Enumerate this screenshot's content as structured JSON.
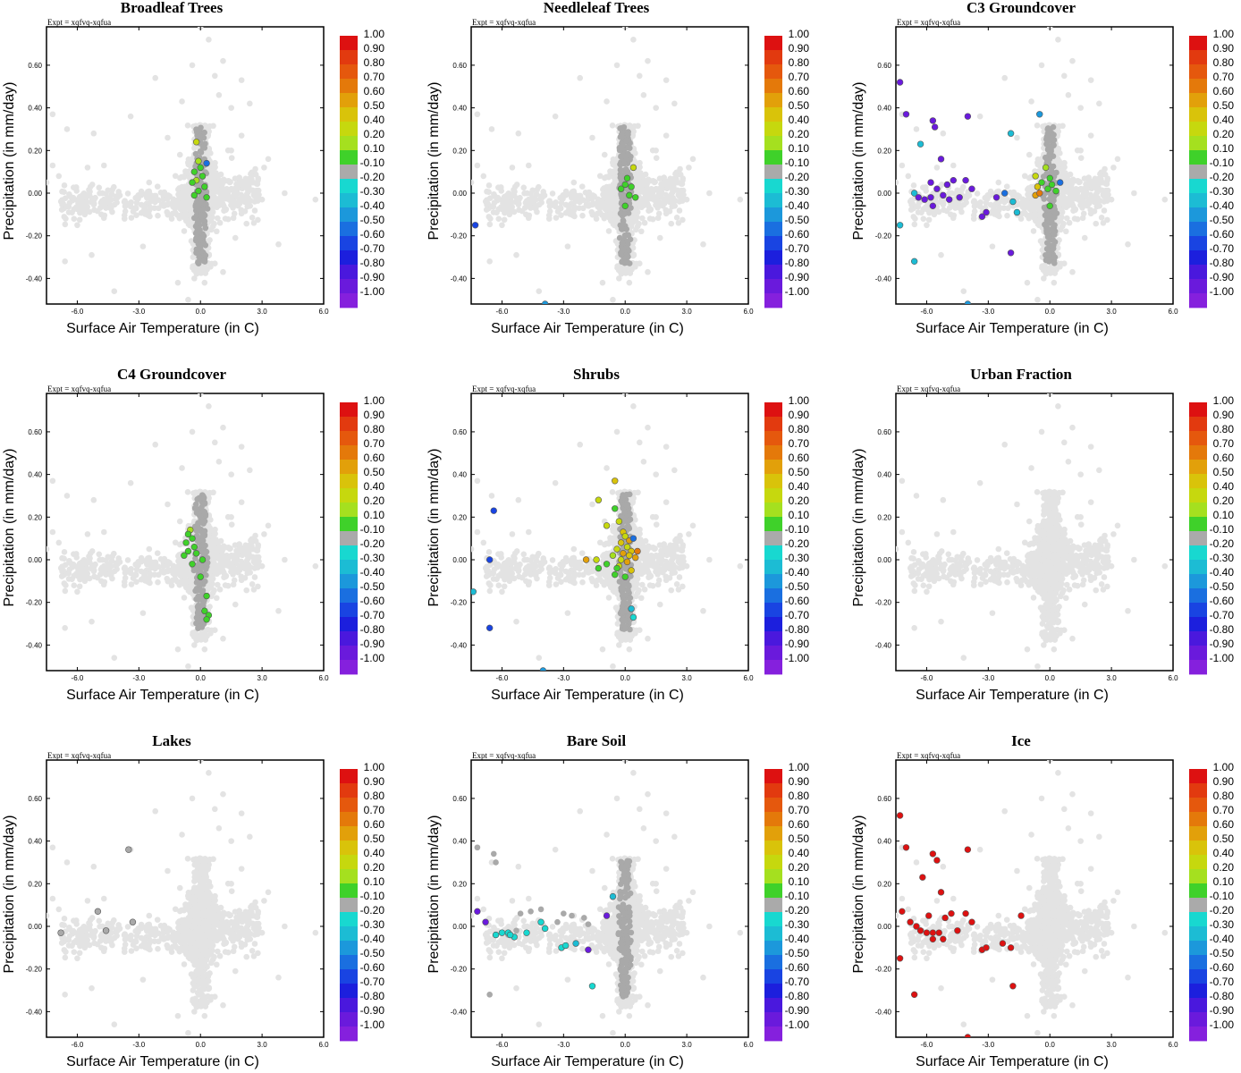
{
  "figure": {
    "experiment_label": "Expt = xqfvq-xqfua",
    "xlabel": "Surface Air Temperature (in C)",
    "ylabel": "Precipitation (in mm/day)",
    "x_ticks": [
      "-6.0",
      "-3.0",
      "0.0",
      "3.0",
      "6.0"
    ],
    "y_ticks": [
      "0.60",
      "0.40",
      "0.20",
      "0.00",
      "-0.20",
      "-0.40"
    ],
    "colorbar": {
      "labels": [
        "1.00",
        "0.90",
        "0.80",
        "0.70",
        "0.60",
        "0.50",
        "0.40",
        "0.20",
        "0.10",
        "-0.10",
        "-0.20",
        "-0.30",
        "-0.40",
        "-0.50",
        "-0.60",
        "-0.70",
        "-0.80",
        "-0.90",
        "-1.00"
      ],
      "colors": [
        "#dd1111",
        "#e23a0f",
        "#e5580d",
        "#e4790a",
        "#e2a00a",
        "#d9c30a",
        "#c6d80e",
        "#a5e01f",
        "#3fd12a",
        "#aaaaaa",
        "#18d8d0",
        "#1cbcd4",
        "#1c98db",
        "#1a6fe0",
        "#1944e2",
        "#1c1fdd",
        "#4a18dd",
        "#6a1adc",
        "#8520dd"
      ]
    },
    "background_color": "#e3e3e3",
    "mid_gray_color": "#a9a9a9"
  },
  "chart_data": [
    {
      "type": "scatter",
      "title": "Broadleaf Trees",
      "xlim": [
        -7.5,
        6.0
      ],
      "ylim": [
        -0.52,
        0.78
      ],
      "highlighted": [
        {
          "x": -0.2,
          "y": 0.24,
          "color": "#c6d80e"
        },
        {
          "x": -0.1,
          "y": 0.15,
          "color": "#a5e01f"
        },
        {
          "x": 0.0,
          "y": 0.12,
          "color": "#3fd12a"
        },
        {
          "x": -0.3,
          "y": 0.1,
          "color": "#3fd12a"
        },
        {
          "x": 0.1,
          "y": 0.08,
          "color": "#3fd12a"
        },
        {
          "x": -0.2,
          "y": 0.06,
          "color": "#a5e01f"
        },
        {
          "x": -0.4,
          "y": 0.05,
          "color": "#3fd12a"
        },
        {
          "x": 0.2,
          "y": 0.03,
          "color": "#3fd12a"
        },
        {
          "x": -0.1,
          "y": 0.01,
          "color": "#3fd12a"
        },
        {
          "x": 0.3,
          "y": 0.14,
          "color": "#1a6fe0"
        },
        {
          "x": -0.3,
          "y": -0.01,
          "color": "#3fd12a"
        },
        {
          "x": 0.3,
          "y": -0.02,
          "color": "#3fd12a"
        }
      ]
    },
    {
      "type": "scatter",
      "title": "Needleleaf Trees",
      "xlim": [
        -7.5,
        6.0
      ],
      "ylim": [
        -0.52,
        0.78
      ],
      "highlighted": [
        {
          "x": 0.4,
          "y": 0.12,
          "color": "#c6d80e"
        },
        {
          "x": 0.1,
          "y": 0.07,
          "color": "#3fd12a"
        },
        {
          "x": 0.0,
          "y": 0.04,
          "color": "#3fd12a"
        },
        {
          "x": 0.3,
          "y": 0.03,
          "color": "#3fd12a"
        },
        {
          "x": -0.2,
          "y": 0.02,
          "color": "#3fd12a"
        },
        {
          "x": 0.2,
          "y": -0.01,
          "color": "#3fd12a"
        },
        {
          "x": 0.5,
          "y": -0.02,
          "color": "#3fd12a"
        },
        {
          "x": 0.0,
          "y": -0.06,
          "color": "#3fd12a"
        },
        {
          "x": -7.3,
          "y": -0.15,
          "color": "#1944e2"
        },
        {
          "x": -3.9,
          "y": -0.52,
          "color": "#1c98db"
        }
      ]
    },
    {
      "type": "scatter",
      "title": "C3 Groundcover",
      "xlim": [
        -7.5,
        6.0
      ],
      "ylim": [
        -0.52,
        0.78
      ],
      "highlighted": [
        {
          "x": -7.3,
          "y": 0.52,
          "color": "#6a1adc"
        },
        {
          "x": -7.0,
          "y": 0.37,
          "color": "#6a1adc"
        },
        {
          "x": -5.7,
          "y": 0.34,
          "color": "#6a1adc"
        },
        {
          "x": -5.6,
          "y": 0.31,
          "color": "#6a1adc"
        },
        {
          "x": -4.0,
          "y": 0.36,
          "color": "#6a1adc"
        },
        {
          "x": -6.3,
          "y": 0.23,
          "color": "#1cbcd4"
        },
        {
          "x": -1.9,
          "y": 0.28,
          "color": "#1cbcd4"
        },
        {
          "x": -0.5,
          "y": 0.37,
          "color": "#1c98db"
        },
        {
          "x": -5.3,
          "y": 0.16,
          "color": "#6a1adc"
        },
        {
          "x": -4.1,
          "y": 0.06,
          "color": "#6a1adc"
        },
        {
          "x": -4.7,
          "y": 0.06,
          "color": "#6a1adc"
        },
        {
          "x": -5.0,
          "y": 0.04,
          "color": "#6a1adc"
        },
        {
          "x": -5.8,
          "y": 0.05,
          "color": "#6a1adc"
        },
        {
          "x": -5.5,
          "y": 0.02,
          "color": "#6a1adc"
        },
        {
          "x": -6.6,
          "y": 0.0,
          "color": "#1cbcd4"
        },
        {
          "x": -6.4,
          "y": -0.02,
          "color": "#6a1adc"
        },
        {
          "x": -6.1,
          "y": -0.03,
          "color": "#6a1adc"
        },
        {
          "x": -5.8,
          "y": -0.02,
          "color": "#6a1adc"
        },
        {
          "x": -5.2,
          "y": -0.01,
          "color": "#6a1adc"
        },
        {
          "x": -4.9,
          "y": -0.03,
          "color": "#6a1adc"
        },
        {
          "x": -4.4,
          "y": -0.02,
          "color": "#6a1adc"
        },
        {
          "x": -5.7,
          "y": -0.06,
          "color": "#6a1adc"
        },
        {
          "x": -3.8,
          "y": 0.02,
          "color": "#6a1adc"
        },
        {
          "x": -3.3,
          "y": -0.11,
          "color": "#6a1adc"
        },
        {
          "x": -3.1,
          "y": -0.09,
          "color": "#6a1adc"
        },
        {
          "x": -2.6,
          "y": -0.02,
          "color": "#6a1adc"
        },
        {
          "x": -2.2,
          "y": 0.0,
          "color": "#1a6fe0"
        },
        {
          "x": -1.8,
          "y": -0.04,
          "color": "#1cbcd4"
        },
        {
          "x": -1.6,
          "y": -0.09,
          "color": "#1cbcd4"
        },
        {
          "x": -7.3,
          "y": -0.15,
          "color": "#1cbcd4"
        },
        {
          "x": -6.6,
          "y": -0.32,
          "color": "#1cbcd4"
        },
        {
          "x": -4.0,
          "y": -0.52,
          "color": "#1c98db"
        },
        {
          "x": -1.9,
          "y": -0.28,
          "color": "#6a1adc"
        },
        {
          "x": -0.7,
          "y": 0.08,
          "color": "#c6d80e"
        },
        {
          "x": -0.6,
          "y": 0.03,
          "color": "#d9c30a"
        },
        {
          "x": -0.7,
          "y": -0.01,
          "color": "#e2a00a"
        },
        {
          "x": -0.5,
          "y": 0.0,
          "color": "#e4790a"
        },
        {
          "x": -0.2,
          "y": 0.12,
          "color": "#a5e01f"
        },
        {
          "x": 0.0,
          "y": 0.07,
          "color": "#3fd12a"
        },
        {
          "x": 0.1,
          "y": 0.04,
          "color": "#3fd12a"
        },
        {
          "x": -0.1,
          "y": 0.02,
          "color": "#3fd12a"
        },
        {
          "x": 0.3,
          "y": 0.01,
          "color": "#3fd12a"
        },
        {
          "x": 0.5,
          "y": 0.05,
          "color": "#1a6fe0"
        },
        {
          "x": -0.4,
          "y": 0.05,
          "color": "#3fd12a"
        },
        {
          "x": 0.0,
          "y": -0.06,
          "color": "#3fd12a"
        }
      ]
    },
    {
      "type": "scatter",
      "title": "C4 Groundcover",
      "xlim": [
        -7.5,
        6.0
      ],
      "ylim": [
        -0.52,
        0.78
      ],
      "highlighted": [
        {
          "x": -0.5,
          "y": 0.14,
          "color": "#a5e01f"
        },
        {
          "x": -0.6,
          "y": 0.12,
          "color": "#3fd12a"
        },
        {
          "x": -0.4,
          "y": 0.1,
          "color": "#3fd12a"
        },
        {
          "x": -0.7,
          "y": 0.08,
          "color": "#3fd12a"
        },
        {
          "x": -0.3,
          "y": 0.06,
          "color": "#3fd12a"
        },
        {
          "x": -0.6,
          "y": 0.04,
          "color": "#3fd12a"
        },
        {
          "x": -0.2,
          "y": 0.03,
          "color": "#3fd12a"
        },
        {
          "x": -0.8,
          "y": 0.02,
          "color": "#3fd12a"
        },
        {
          "x": 0.1,
          "y": 0.0,
          "color": "#3fd12a"
        },
        {
          "x": -0.4,
          "y": -0.02,
          "color": "#3fd12a"
        },
        {
          "x": 0.0,
          "y": -0.08,
          "color": "#3fd12a"
        },
        {
          "x": 0.3,
          "y": -0.17,
          "color": "#3fd12a"
        },
        {
          "x": 0.2,
          "y": -0.24,
          "color": "#3fd12a"
        },
        {
          "x": 0.4,
          "y": -0.26,
          "color": "#3fd12a"
        },
        {
          "x": 0.3,
          "y": -0.28,
          "color": "#3fd12a"
        }
      ]
    },
    {
      "type": "scatter",
      "title": "Shrubs",
      "xlim": [
        -7.5,
        6.0
      ],
      "ylim": [
        -0.52,
        0.78
      ],
      "highlighted": [
        {
          "x": -0.5,
          "y": 0.37,
          "color": "#d9c30a"
        },
        {
          "x": -1.3,
          "y": 0.28,
          "color": "#c6d80e"
        },
        {
          "x": -0.5,
          "y": 0.24,
          "color": "#3fd12a"
        },
        {
          "x": -0.3,
          "y": 0.18,
          "color": "#c6d80e"
        },
        {
          "x": -0.9,
          "y": 0.16,
          "color": "#c6d80e"
        },
        {
          "x": -0.1,
          "y": 0.13,
          "color": "#d9c30a"
        },
        {
          "x": 0.0,
          "y": 0.11,
          "color": "#c6d80e"
        },
        {
          "x": 0.2,
          "y": 0.09,
          "color": "#e2a00a"
        },
        {
          "x": -0.2,
          "y": 0.08,
          "color": "#d9c30a"
        },
        {
          "x": 0.4,
          "y": 0.1,
          "color": "#1a6fe0"
        },
        {
          "x": 0.1,
          "y": 0.06,
          "color": "#c6d80e"
        },
        {
          "x": -0.4,
          "y": 0.05,
          "color": "#c6d80e"
        },
        {
          "x": 0.3,
          "y": 0.04,
          "color": "#d9c30a"
        },
        {
          "x": 0.6,
          "y": 0.04,
          "color": "#e4790a"
        },
        {
          "x": -0.1,
          "y": 0.03,
          "color": "#e2a00a"
        },
        {
          "x": 0.2,
          "y": 0.02,
          "color": "#d9c30a"
        },
        {
          "x": -0.6,
          "y": 0.02,
          "color": "#a5e01f"
        },
        {
          "x": 0.5,
          "y": 0.01,
          "color": "#e2a00a"
        },
        {
          "x": -0.2,
          "y": 0.0,
          "color": "#c6d80e"
        },
        {
          "x": 0.1,
          "y": -0.01,
          "color": "#e2a00a"
        },
        {
          "x": -1.9,
          "y": 0.0,
          "color": "#e2a00a"
        },
        {
          "x": -1.4,
          "y": 0.0,
          "color": "#c6d80e"
        },
        {
          "x": -0.9,
          "y": -0.02,
          "color": "#3fd12a"
        },
        {
          "x": -1.3,
          "y": -0.04,
          "color": "#3fd12a"
        },
        {
          "x": -0.3,
          "y": -0.03,
          "color": "#c6d80e"
        },
        {
          "x": 0.3,
          "y": -0.05,
          "color": "#d9c30a"
        },
        {
          "x": -0.5,
          "y": -0.07,
          "color": "#3fd12a"
        },
        {
          "x": 0.0,
          "y": -0.08,
          "color": "#3fd12a"
        },
        {
          "x": -0.4,
          "y": -0.04,
          "color": "#3fd12a"
        },
        {
          "x": 0.4,
          "y": -0.27,
          "color": "#18d8d0"
        },
        {
          "x": 0.3,
          "y": -0.23,
          "color": "#1cbcd4"
        },
        {
          "x": -6.4,
          "y": 0.23,
          "color": "#1944e2"
        },
        {
          "x": -6.6,
          "y": 0.0,
          "color": "#1944e2"
        },
        {
          "x": -7.4,
          "y": -0.15,
          "color": "#1cbcd4"
        },
        {
          "x": -6.6,
          "y": -0.32,
          "color": "#1944e2"
        },
        {
          "x": -4.0,
          "y": -0.52,
          "color": "#1c98db"
        }
      ]
    },
    {
      "type": "scatter",
      "title": "Urban Fraction",
      "xlim": [
        -7.5,
        6.0
      ],
      "ylim": [
        -0.52,
        0.78
      ],
      "highlighted": []
    },
    {
      "type": "scatter",
      "title": "Lakes",
      "xlim": [
        -7.5,
        6.0
      ],
      "ylim": [
        -0.52,
        0.78
      ],
      "highlighted": [
        {
          "x": -3.5,
          "y": 0.36,
          "color": "#a9a9a9"
        },
        {
          "x": -5.0,
          "y": 0.07,
          "color": "#a9a9a9"
        },
        {
          "x": -3.3,
          "y": 0.02,
          "color": "#a9a9a9"
        },
        {
          "x": -6.8,
          "y": -0.03,
          "color": "#a9a9a9"
        },
        {
          "x": -4.6,
          "y": -0.02,
          "color": "#a9a9a9"
        }
      ]
    },
    {
      "type": "scatter",
      "title": "Bare Soil",
      "xlim": [
        -7.5,
        6.0
      ],
      "ylim": [
        -0.52,
        0.78
      ],
      "highlighted": [
        {
          "x": -7.2,
          "y": 0.07,
          "color": "#6a1adc"
        },
        {
          "x": -6.8,
          "y": 0.02,
          "color": "#6a1adc"
        },
        {
          "x": -6.3,
          "y": -0.04,
          "color": "#18d8d0"
        },
        {
          "x": -6.0,
          "y": -0.03,
          "color": "#18d8d0"
        },
        {
          "x": -5.7,
          "y": -0.03,
          "color": "#18d8d0"
        },
        {
          "x": -5.4,
          "y": -0.05,
          "color": "#18d8d0"
        },
        {
          "x": -5.6,
          "y": -0.04,
          "color": "#18d8d0"
        },
        {
          "x": -4.8,
          "y": -0.03,
          "color": "#18d8d0"
        },
        {
          "x": -4.1,
          "y": 0.02,
          "color": "#18d8d0"
        },
        {
          "x": -3.9,
          "y": -0.01,
          "color": "#18d8d0"
        },
        {
          "x": -3.1,
          "y": -0.1,
          "color": "#18d8d0"
        },
        {
          "x": -2.9,
          "y": -0.09,
          "color": "#18d8d0"
        },
        {
          "x": -2.4,
          "y": -0.08,
          "color": "#1cbcd4"
        },
        {
          "x": -1.8,
          "y": -0.11,
          "color": "#6a1adc"
        },
        {
          "x": -1.6,
          "y": -0.28,
          "color": "#18d8d0"
        },
        {
          "x": -0.6,
          "y": 0.14,
          "color": "#1cbcd4"
        },
        {
          "x": -0.9,
          "y": 0.05,
          "color": "#6a1adc"
        }
      ]
    },
    {
      "type": "scatter",
      "title": "Ice",
      "xlim": [
        -7.5,
        6.0
      ],
      "ylim": [
        -0.52,
        0.78
      ],
      "highlighted": [
        {
          "x": -7.3,
          "y": 0.52,
          "color": "#dd1111"
        },
        {
          "x": -7.0,
          "y": 0.37,
          "color": "#dd1111"
        },
        {
          "x": -6.2,
          "y": 0.23,
          "color": "#dd1111"
        },
        {
          "x": -5.7,
          "y": 0.34,
          "color": "#dd1111"
        },
        {
          "x": -5.5,
          "y": 0.31,
          "color": "#dd1111"
        },
        {
          "x": -4.0,
          "y": 0.36,
          "color": "#dd1111"
        },
        {
          "x": -7.2,
          "y": 0.07,
          "color": "#dd1111"
        },
        {
          "x": -6.8,
          "y": 0.02,
          "color": "#dd1111"
        },
        {
          "x": -6.5,
          "y": 0.0,
          "color": "#dd1111"
        },
        {
          "x": -6.3,
          "y": -0.02,
          "color": "#dd1111"
        },
        {
          "x": -6.0,
          "y": -0.03,
          "color": "#dd1111"
        },
        {
          "x": -5.7,
          "y": -0.03,
          "color": "#dd1111"
        },
        {
          "x": -5.4,
          "y": -0.03,
          "color": "#dd1111"
        },
        {
          "x": -5.9,
          "y": 0.05,
          "color": "#dd1111"
        },
        {
          "x": -5.3,
          "y": 0.16,
          "color": "#dd1111"
        },
        {
          "x": -5.1,
          "y": 0.04,
          "color": "#dd1111"
        },
        {
          "x": -4.8,
          "y": 0.06,
          "color": "#dd1111"
        },
        {
          "x": -4.5,
          "y": -0.02,
          "color": "#dd1111"
        },
        {
          "x": -5.7,
          "y": -0.06,
          "color": "#dd1111"
        },
        {
          "x": -5.2,
          "y": -0.06,
          "color": "#dd1111"
        },
        {
          "x": -4.1,
          "y": 0.06,
          "color": "#dd1111"
        },
        {
          "x": -3.8,
          "y": 0.02,
          "color": "#dd1111"
        },
        {
          "x": -3.3,
          "y": -0.11,
          "color": "#dd1111"
        },
        {
          "x": -3.1,
          "y": -0.1,
          "color": "#dd1111"
        },
        {
          "x": -2.3,
          "y": -0.08,
          "color": "#dd1111"
        },
        {
          "x": -1.9,
          "y": -0.1,
          "color": "#dd1111"
        },
        {
          "x": -1.8,
          "y": -0.28,
          "color": "#dd1111"
        },
        {
          "x": -1.4,
          "y": 0.05,
          "color": "#dd1111"
        },
        {
          "x": -7.3,
          "y": -0.15,
          "color": "#dd1111"
        },
        {
          "x": -6.6,
          "y": -0.32,
          "color": "#dd1111"
        },
        {
          "x": -4.0,
          "y": -0.52,
          "color": "#dd1111"
        }
      ]
    }
  ]
}
